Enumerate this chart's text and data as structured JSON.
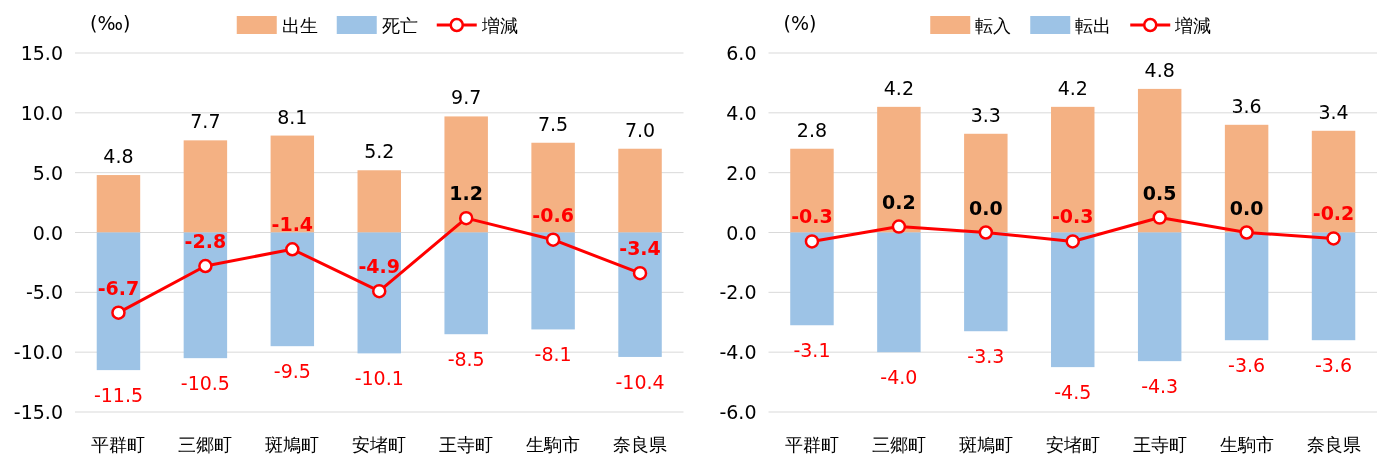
{
  "chart_data": [
    {
      "type": "bar",
      "ylabel": "(‰)",
      "stacked": true,
      "legend": "top",
      "grid": "y",
      "categories": [
        "平群町",
        "三郷町",
        "斑鳩町",
        "安堵町",
        "王寺町",
        "生駒市",
        "奈良県"
      ],
      "ylim": [
        -15,
        15
      ],
      "yticks": [
        {
          "value": -15,
          "label": "-15.0"
        },
        {
          "value": -10,
          "label": "-10.0"
        },
        {
          "value": -5,
          "label": "-5.0"
        },
        {
          "value": 0,
          "label": "0.0"
        },
        {
          "value": 5,
          "label": "5.0"
        },
        {
          "value": 10,
          "label": "10.0"
        },
        {
          "value": 15,
          "label": "15.0"
        }
      ],
      "series": [
        {
          "name": "出生",
          "color": "#f4b183",
          "values": [
            4.8,
            7.7,
            8.1,
            5.2,
            9.7,
            7.5,
            7.0
          ],
          "value_labels": [
            "4.8",
            "7.7",
            "8.1",
            "5.2",
            "9.7",
            "7.5",
            "7.0"
          ]
        },
        {
          "name": "死亡",
          "color": "#9dc3e6",
          "values": [
            -11.5,
            -10.5,
            -9.5,
            -10.1,
            -8.5,
            -8.1,
            -10.4
          ],
          "value_labels": [
            "-11.5",
            "-10.5",
            "-9.5",
            "-10.1",
            "-8.5",
            "-8.1",
            "-10.4"
          ]
        },
        {
          "name": "増減",
          "type": "line",
          "marker": "circle",
          "color": "#ff0000",
          "values": [
            -6.7,
            -2.8,
            -1.4,
            -4.9,
            1.2,
            -0.6,
            -3.4
          ],
          "value_labels": [
            "-6.7",
            "-2.8",
            "-1.4",
            "-4.9",
            "1.2",
            "-0.6",
            "-3.4"
          ]
        }
      ]
    },
    {
      "type": "bar",
      "ylabel": "(%)",
      "stacked": true,
      "legend": "top",
      "grid": "y",
      "categories": [
        "平群町",
        "三郷町",
        "斑鳩町",
        "安堵町",
        "王寺町",
        "生駒市",
        "奈良県"
      ],
      "ylim": [
        -6,
        6
      ],
      "yticks": [
        {
          "value": -6,
          "label": "-6.0"
        },
        {
          "value": -4,
          "label": "-4.0"
        },
        {
          "value": -2,
          "label": "-2.0"
        },
        {
          "value": 0,
          "label": "0.0"
        },
        {
          "value": 2,
          "label": "2.0"
        },
        {
          "value": 4,
          "label": "4.0"
        },
        {
          "value": 6,
          "label": "6.0"
        }
      ],
      "series": [
        {
          "name": "転入",
          "color": "#f4b183",
          "values": [
            2.8,
            4.2,
            3.3,
            4.2,
            4.8,
            3.6,
            3.4
          ],
          "value_labels": [
            "2.8",
            "4.2",
            "3.3",
            "4.2",
            "4.8",
            "3.6",
            "3.4"
          ]
        },
        {
          "name": "転出",
          "color": "#9dc3e6",
          "values": [
            -3.1,
            -4.0,
            -3.3,
            -4.5,
            -4.3,
            -3.6,
            -3.6
          ],
          "value_labels": [
            "-3.1",
            "-4.0",
            "-3.3",
            "-4.5",
            "-4.3",
            "-3.6",
            "-3.6"
          ]
        },
        {
          "name": "増減",
          "type": "line",
          "marker": "circle",
          "color": "#ff0000",
          "values": [
            -0.3,
            0.2,
            0.0,
            -0.3,
            0.5,
            0.0,
            -0.2
          ],
          "value_labels": [
            "-0.3",
            "0.2",
            "0.0",
            "-0.3",
            "0.5",
            "0.0",
            "-0.2"
          ]
        }
      ]
    }
  ]
}
